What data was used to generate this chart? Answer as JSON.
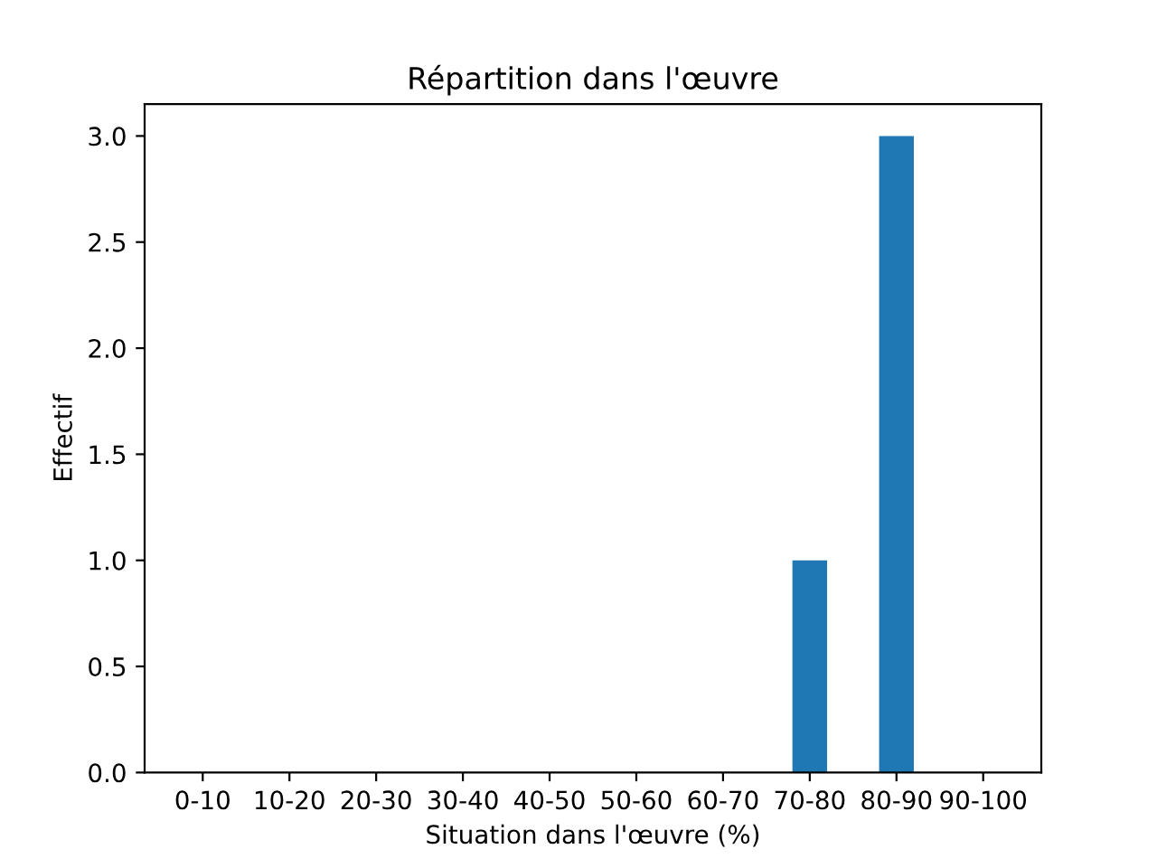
{
  "chart_data": {
    "type": "bar",
    "title": "Répartition dans l'œuvre",
    "xlabel": "Situation dans l'œuvre (%)",
    "ylabel": "Effectif",
    "categories": [
      "0-10",
      "10-20",
      "20-30",
      "30-40",
      "40-50",
      "50-60",
      "60-70",
      "70-80",
      "80-90",
      "90-100"
    ],
    "values": [
      0,
      0,
      0,
      0,
      0,
      0,
      0,
      1,
      3,
      0
    ],
    "color": "#1f77b4",
    "ylim": [
      0,
      3.15
    ],
    "yticks": [
      {
        "value": 0,
        "label": "0.0"
      },
      {
        "value": 0.5,
        "label": "0.5"
      },
      {
        "value": 1,
        "label": "1.0"
      },
      {
        "value": 1.5,
        "label": "1.5"
      },
      {
        "value": 2,
        "label": "2.0"
      },
      {
        "value": 2.5,
        "label": "2.5"
      },
      {
        "value": 3,
        "label": "3.0"
      }
    ],
    "grid": false
  }
}
